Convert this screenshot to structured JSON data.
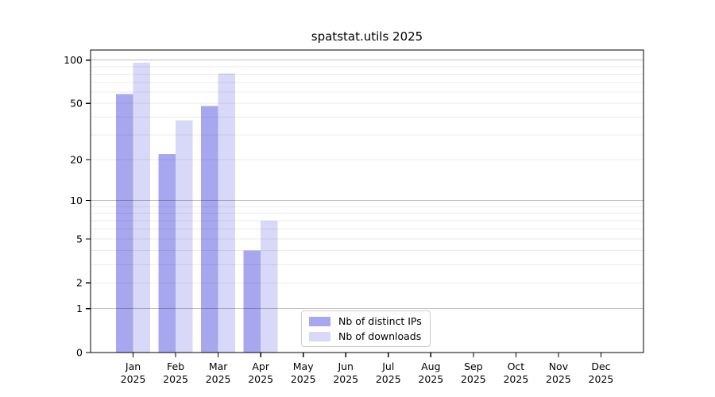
{
  "chart_data": {
    "type": "bar",
    "title": "spatstat.utils 2025",
    "categories": [
      "Jan",
      "Feb",
      "Mar",
      "Apr",
      "May",
      "Jun",
      "Jul",
      "Aug",
      "Sep",
      "Oct",
      "Nov",
      "Dec"
    ],
    "year_label": "2025",
    "series": [
      {
        "name": "Nb of distinct IPs",
        "color": "#a7a7f0",
        "values": [
          58,
          22,
          48,
          4,
          0,
          0,
          0,
          0,
          0,
          0,
          0,
          0
        ]
      },
      {
        "name": "Nb of downloads",
        "color": "#d8d8f8",
        "values": [
          96,
          38,
          81,
          7,
          0,
          0,
          0,
          0,
          0,
          0,
          0,
          0
        ]
      }
    ],
    "y_scale": "log10(value+1), zero pinned to baseline",
    "y_ticks": [
      100,
      50,
      20,
      10,
      5,
      2,
      1,
      0
    ],
    "y_major_gridlines": [
      1,
      10,
      100
    ],
    "y_minor_gridlines": [
      2,
      3,
      4,
      5,
      6,
      7,
      8,
      9,
      20,
      30,
      40,
      50,
      60,
      70,
      80,
      90
    ],
    "ylim": [
      0,
      117
    ],
    "grid": true,
    "legend_position": "lower center",
    "colors": {
      "axis": "#000000",
      "tick_label": "#000000",
      "minor_grid": "rgba(0,0,0,0.08)",
      "major_grid": "rgba(0,0,0,0.24)",
      "background": "#ffffff",
      "legend_border": "#cccccc"
    }
  }
}
